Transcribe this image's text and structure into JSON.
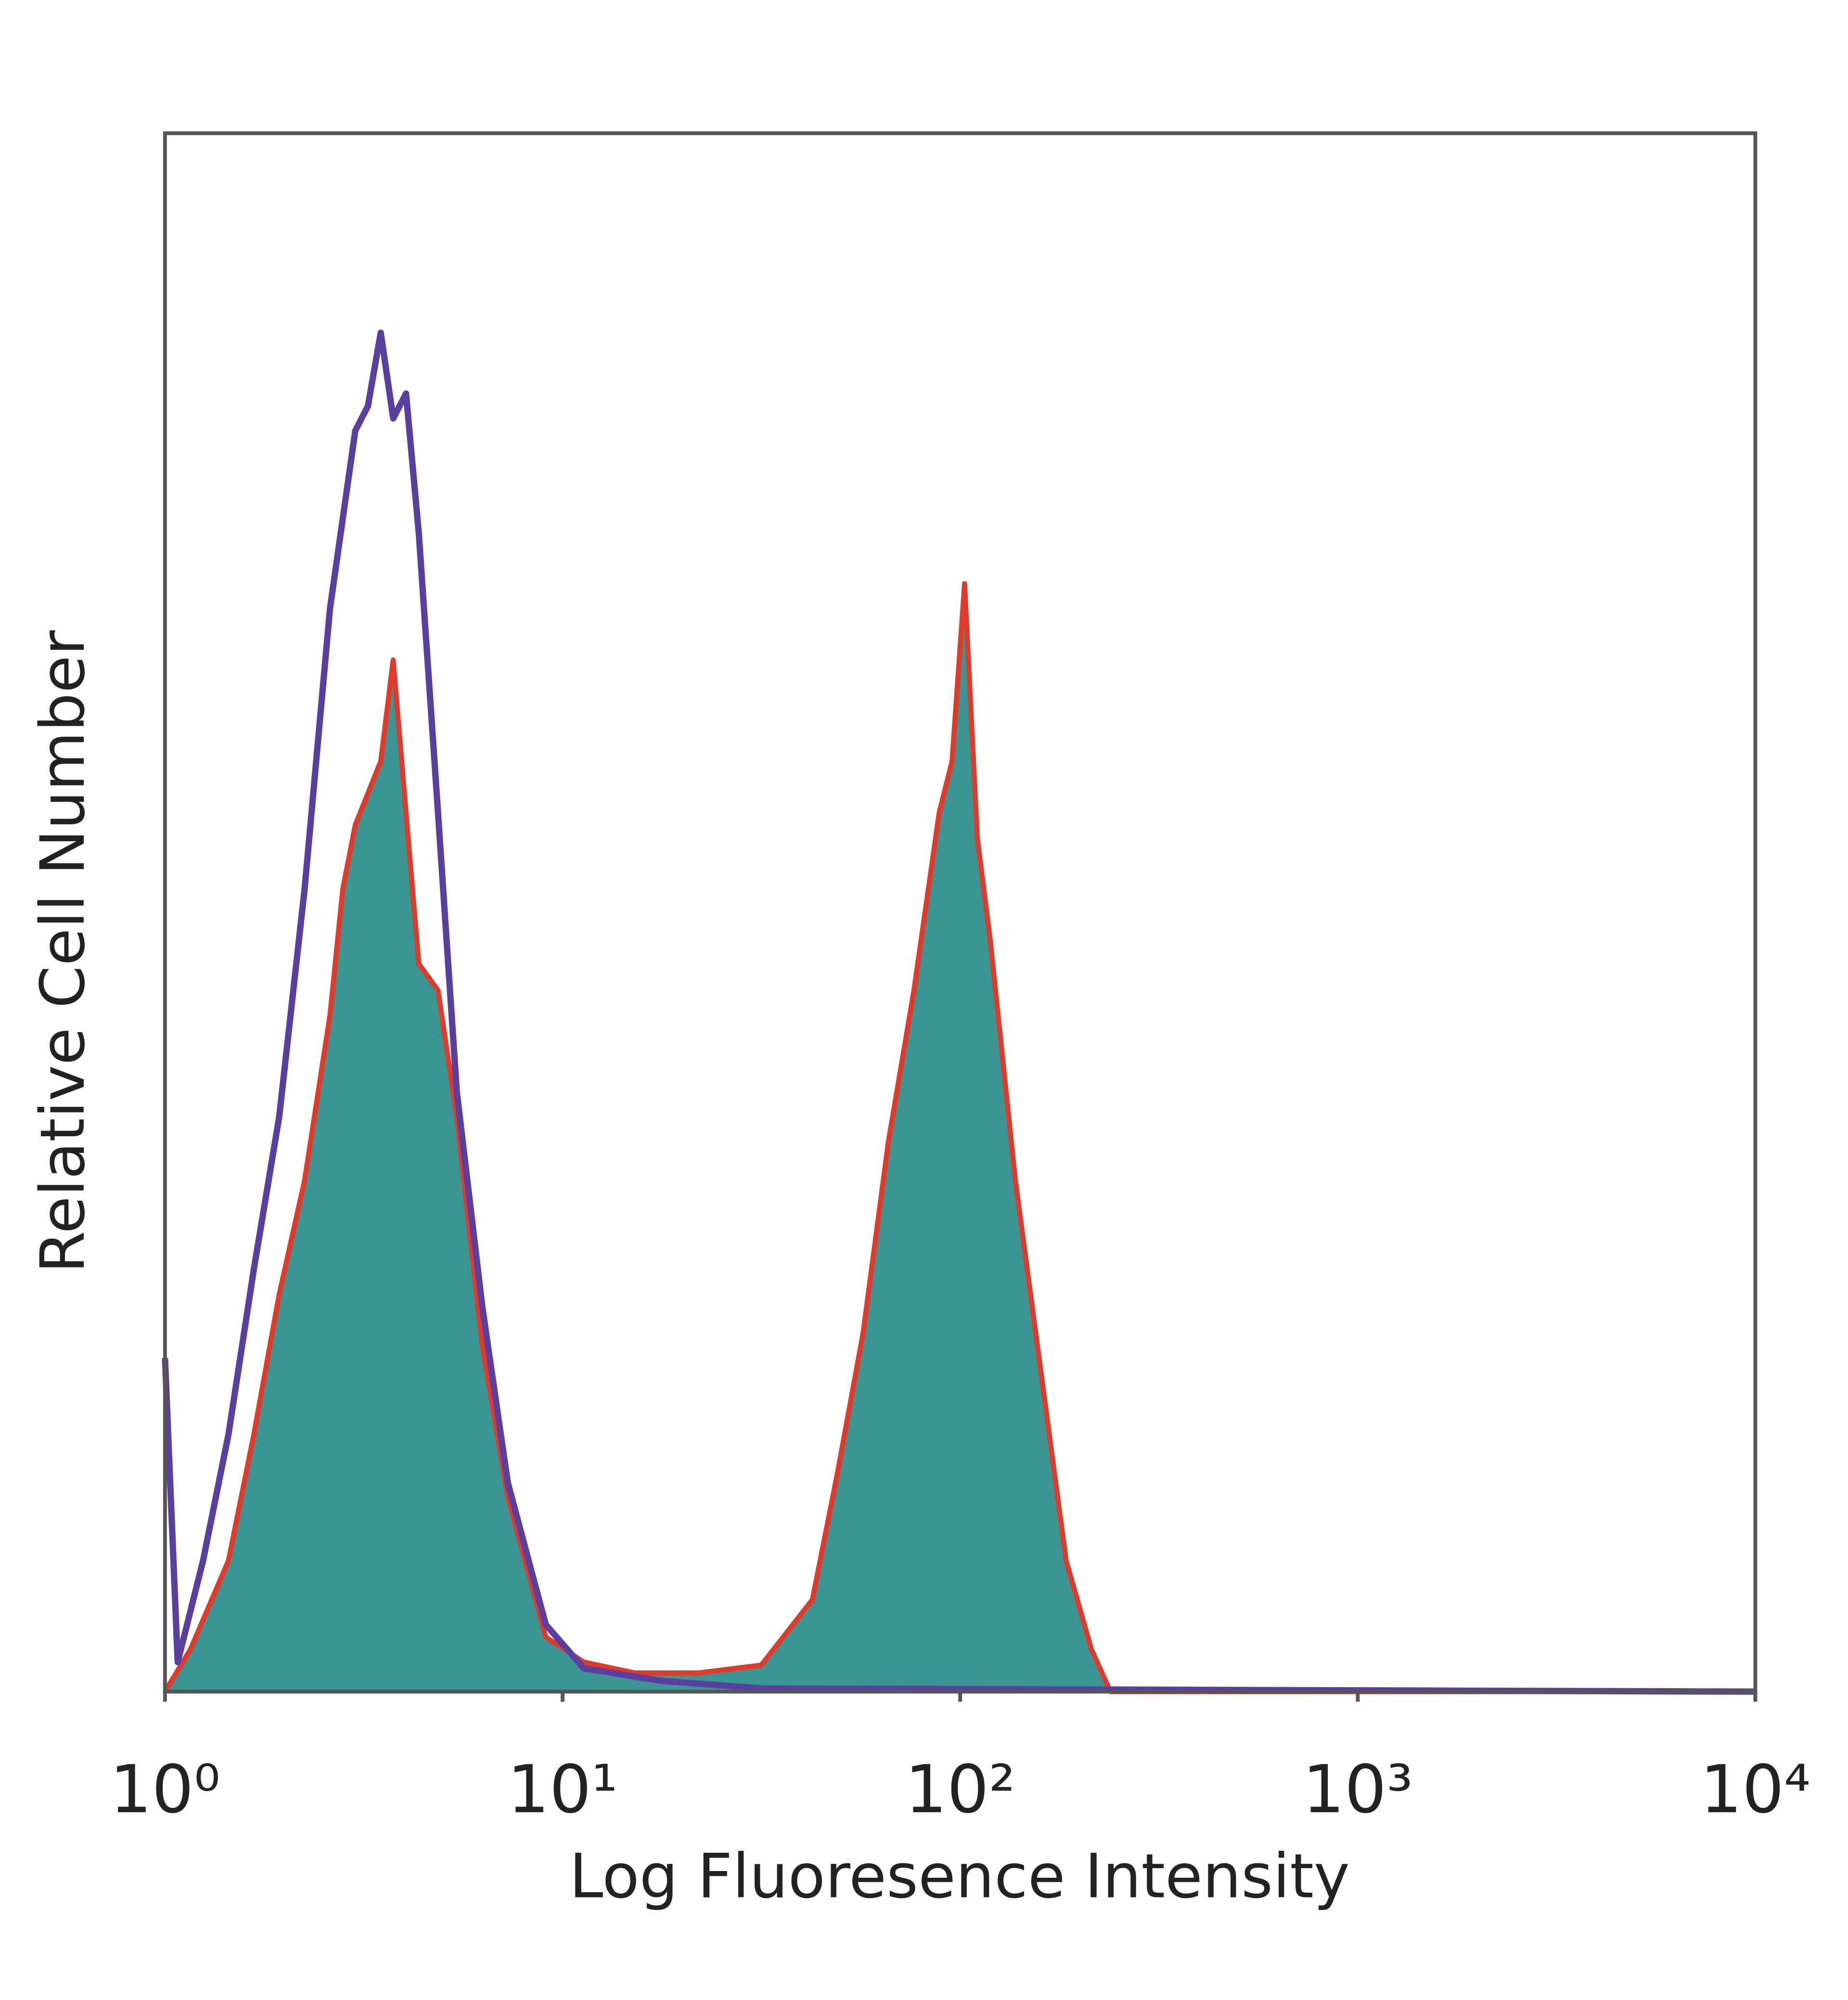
{
  "chart_data": {
    "type": "histogram-overlay",
    "xlabel": "Log Fluoresence Intensity",
    "ylabel": "Relative Cell Number",
    "xscale": "log",
    "xlim": [
      1,
      10000
    ],
    "ylim": [
      0,
      100
    ],
    "xticks": [
      {
        "value": 1,
        "label": "10⁰"
      },
      {
        "value": 10,
        "label": "10¹"
      },
      {
        "value": 100,
        "label": "10²"
      },
      {
        "value": 1000,
        "label": "10³"
      },
      {
        "value": 10000,
        "label": "10⁴"
      }
    ],
    "series": [
      {
        "color": "#5a3fa0",
        "fill": null,
        "x": [
          1,
          1.076,
          1.247,
          1.444,
          1.673,
          1.938,
          2.245,
          2.6,
          3.01,
          3.24,
          3.49,
          3.75,
          4.04,
          4.35,
          4.86,
          5.42,
          6.28,
          7.28,
          9.07,
          11.3,
          17.6,
          31.6,
          10000
        ],
        "values": [
          21.4,
          1.9,
          8.4,
          16.5,
          27.1,
          36.9,
          51.5,
          69.5,
          80.9,
          82.5,
          87.2,
          81.7,
          83.3,
          74.3,
          56.4,
          38.5,
          24.7,
          13.4,
          4.3,
          1.5,
          0.7,
          0.2,
          0
        ]
      },
      {
        "color": "#e03a2a",
        "fill": "#3a9593",
        "x": [
          1,
          1.158,
          1.444,
          1.673,
          1.938,
          2.245,
          2.6,
          2.8,
          3.01,
          3.49,
          3.75,
          4.04,
          4.35,
          4.86,
          5.42,
          6.28,
          7.28,
          9.07,
          11.3,
          15.2,
          21.9,
          31.6,
          42.5,
          49.2,
          57.0,
          66.0,
          76.5,
          88.6,
          95.4,
          102.6,
          110.4,
          118.9,
          137.7,
          159.5,
          184.7,
          214,
          238.8,
          10000
        ],
        "values": [
          0,
          2.7,
          8.4,
          16.5,
          25.5,
          32.8,
          43.4,
          51.5,
          55.6,
          59.7,
          66.2,
          56.4,
          46.7,
          45.0,
          36.9,
          22.2,
          12.5,
          3.5,
          1.9,
          1.2,
          1.2,
          1.7,
          5.9,
          14.1,
          23.0,
          35.3,
          45.0,
          56.4,
          59.7,
          71.1,
          54.8,
          48.3,
          32.8,
          20.6,
          8.4,
          2.7,
          0,
          0
        ]
      }
    ]
  }
}
